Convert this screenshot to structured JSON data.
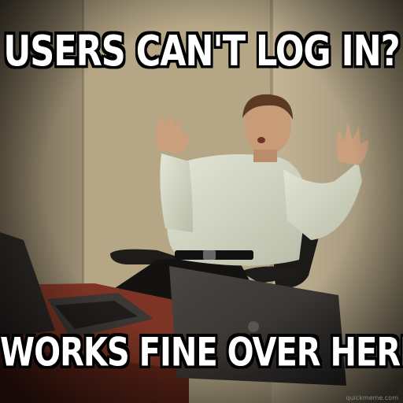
{
  "meme": {
    "top_text": "USERS CAN'T LOG IN?",
    "bottom_text": "WORKS FINE OVER HERE",
    "watermark": "quickmeme.com"
  },
  "colors": {
    "wall": "#b8a88a",
    "desk": "#8a3a28",
    "shirt": "#d9dccb",
    "caption_fill": "#ffffff",
    "caption_outline": "#000000"
  }
}
